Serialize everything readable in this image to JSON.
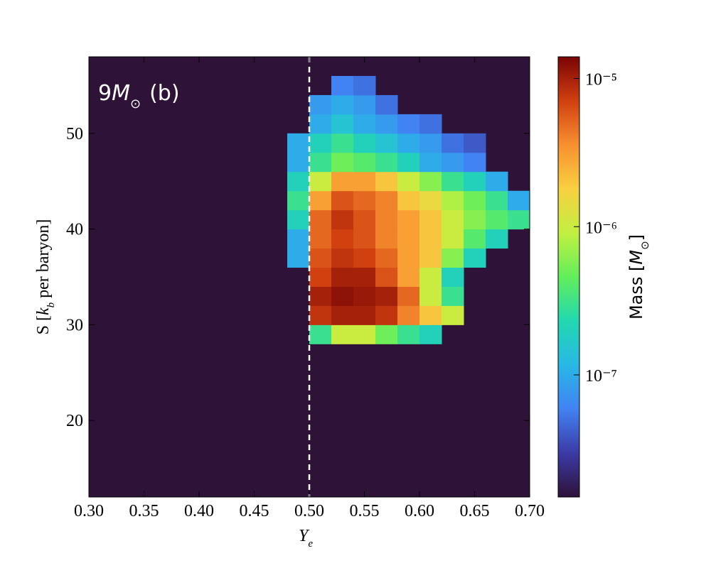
{
  "chart_data": {
    "type": "heatmap",
    "annotation": {
      "mass": "9",
      "symbol": "M",
      "sub": "⊙",
      "panel": "(b)"
    },
    "xlabel": {
      "symbol": "Y",
      "sub": "e"
    },
    "ylabel": {
      "before": "S [",
      "symbol": "k",
      "sub": "b",
      "after": " per baryon]"
    },
    "colorbar_label": {
      "before": "Mass [",
      "symbol": "M",
      "sub": "⊙",
      "after": "]"
    },
    "xlim": [
      0.3,
      0.7
    ],
    "xticks": [
      {
        "value": 0.3,
        "label": "0.30"
      },
      {
        "value": 0.35,
        "label": "0.35"
      },
      {
        "value": 0.4,
        "label": "0.40"
      },
      {
        "value": 0.45,
        "label": "0.45"
      },
      {
        "value": 0.5,
        "label": "0.50"
      },
      {
        "value": 0.55,
        "label": "0.55"
      },
      {
        "value": 0.6,
        "label": "0.60"
      },
      {
        "value": 0.65,
        "label": "0.65"
      },
      {
        "value": 0.7,
        "label": "0.70"
      }
    ],
    "ylim": [
      12,
      58
    ],
    "yticks": [
      20,
      30,
      40,
      50
    ],
    "clim": [
      1.5e-08,
      1.4e-05
    ],
    "cticks": [
      {
        "value": 1e-05,
        "label": "10⁻⁵"
      },
      {
        "value": 1e-06,
        "label": "10⁻⁶"
      },
      {
        "value": 1e-07,
        "label": "10⁻⁷"
      }
    ],
    "color_scale": "log",
    "vline": 0.5,
    "x_bins": [
      0.48,
      0.5,
      0.52,
      0.54,
      0.56,
      0.58,
      0.6,
      0.62,
      0.64,
      0.66,
      0.68,
      0.7
    ],
    "y_bins": [
      28,
      30,
      32,
      34,
      36,
      38,
      40,
      42,
      44,
      46,
      48,
      50,
      52,
      54,
      56,
      58
    ],
    "z": [
      [
        null,
        3e-07,
        1e-06,
        1e-06,
        5e-07,
        3e-07,
        2e-07,
        null,
        null,
        null,
        null
      ],
      [
        null,
        8e-06,
        1e-05,
        1e-05,
        8e-06,
        4e-06,
        2e-06,
        1e-06,
        null,
        null,
        null
      ],
      [
        null,
        1e-05,
        1.2e-05,
        1.1e-05,
        1e-05,
        5e-06,
        1e-06,
        3e-07,
        null,
        null,
        null
      ],
      [
        null,
        7e-06,
        1e-05,
        1e-05,
        6e-06,
        3e-06,
        1e-06,
        2e-07,
        null,
        null,
        null
      ],
      [
        1e-07,
        6e-06,
        8e-06,
        7e-06,
        5e-06,
        3e-06,
        2e-06,
        6e-07,
        2e-07,
        null,
        null
      ],
      [
        1e-07,
        5e-06,
        7e-06,
        6e-06,
        4e-06,
        3e-06,
        2e-06,
        1e-06,
        4e-07,
        2e-07,
        null
      ],
      [
        2e-07,
        5e-06,
        8e-06,
        6e-06,
        4e-06,
        3e-06,
        2e-06,
        1e-06,
        6e-07,
        4e-07,
        3e-07
      ],
      [
        3e-07,
        3e-06,
        6e-06,
        5e-06,
        4e-06,
        2e-06,
        1.5e-06,
        8e-07,
        5e-07,
        3e-07,
        1e-07
      ],
      [
        2e-07,
        1e-06,
        3e-06,
        3e-06,
        2e-06,
        1e-06,
        6e-07,
        3e-07,
        2e-07,
        1e-07,
        null
      ],
      [
        1e-07,
        3e-07,
        5e-07,
        4e-07,
        3e-07,
        2e-07,
        1e-07,
        8e-08,
        6e-08,
        null,
        null
      ],
      [
        1e-07,
        2e-07,
        3e-07,
        2e-07,
        1.5e-07,
        1e-07,
        8e-08,
        5e-08,
        4e-08,
        null,
        null
      ],
      [
        null,
        1e-07,
        1.5e-07,
        1e-07,
        8e-08,
        6e-08,
        5e-08,
        null,
        null,
        null,
        null
      ],
      [
        null,
        8e-08,
        1e-07,
        8e-08,
        5e-08,
        null,
        null,
        null,
        null,
        null,
        null
      ],
      [
        null,
        null,
        6e-08,
        5e-08,
        null,
        null,
        null,
        null,
        null,
        null,
        null
      ],
      [
        null,
        null,
        null,
        null,
        null,
        null,
        null,
        null,
        null,
        null,
        null
      ]
    ]
  }
}
